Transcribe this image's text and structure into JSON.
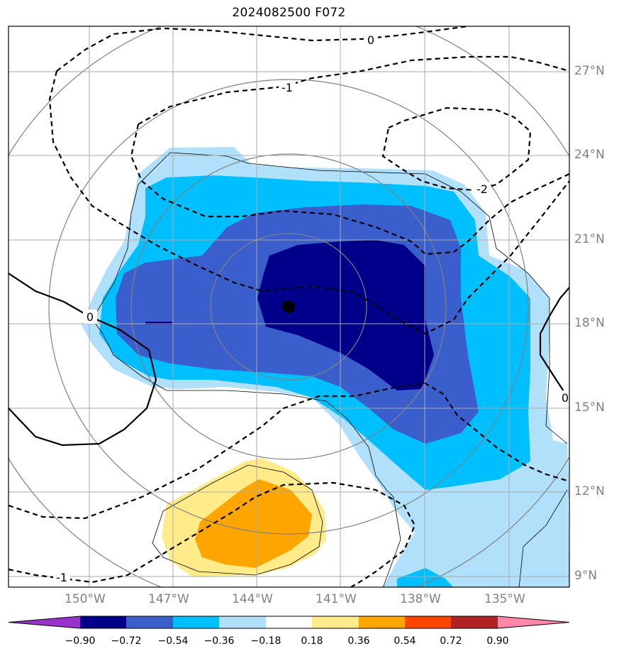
{
  "title": "2024082500 F072",
  "lat_labels": [
    "27°N",
    "24°N",
    "21°N",
    "18°N",
    "15°N",
    "12°N",
    "9°N"
  ],
  "lon_labels": [
    "150°W",
    "147°W",
    "144°W",
    "141°W",
    "138°W",
    "135°W"
  ],
  "contour_labels": [
    "0",
    "-1",
    "-2",
    "0",
    "0",
    "-1"
  ],
  "colorbar": {
    "ticks": [
      "−0.90",
      "−0.72",
      "−0.54",
      "−0.36",
      "−0.18",
      "0.18",
      "0.36",
      "0.54",
      "0.72",
      "0.90"
    ],
    "colors": [
      "#9932cc",
      "#00008b",
      "#3a5fcd",
      "#00bfff",
      "#b0e0fa",
      "#ffffff",
      "#ffeb8a",
      "#ffa500",
      "#ff4500",
      "#b22222",
      "#ff88aa"
    ]
  },
  "colors": {
    "grid": "#aaaaaa",
    "range_rings": "#808080",
    "contours": "#000000",
    "storm_center": "#000000"
  }
}
